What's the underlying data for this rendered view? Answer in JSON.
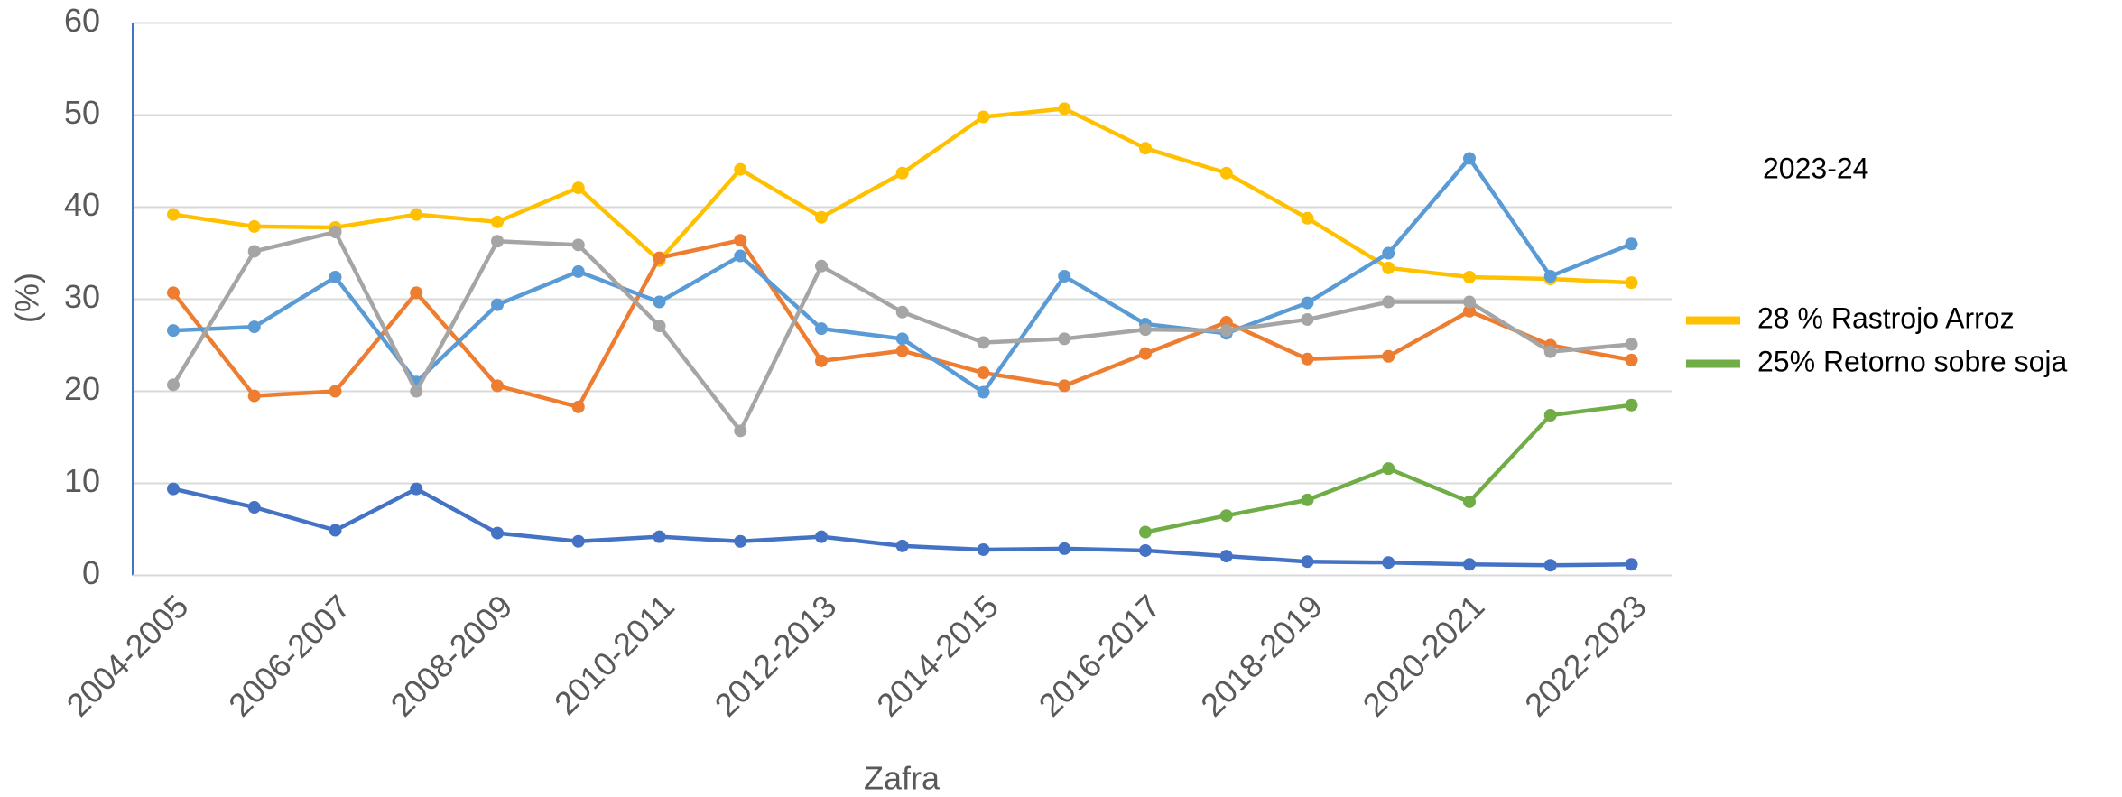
{
  "chart_data": {
    "type": "line",
    "x_label": "Zafra",
    "y_label": "(%)",
    "legend_title": "2023-24",
    "categories": [
      "2004-2005",
      null,
      "2006-2007",
      null,
      "2008-2009",
      null,
      "2010-2011",
      null,
      "2012-2013",
      null,
      "2014-2015",
      null,
      "2016-2017",
      null,
      "2018-2019",
      null,
      "2020-2021",
      null,
      "2022-2023"
    ],
    "series": [
      {
        "name": "28 % Rastrojo Arroz",
        "color": "#ffc000",
        "values": [
          39.2,
          37.9,
          37.8,
          39.2,
          38.4,
          42.1,
          34.2,
          44.1,
          38.9,
          43.7,
          49.8,
          50.7,
          46.4,
          43.7,
          38.8,
          33.4,
          32.4,
          32.2,
          31.8
        ]
      },
      {
        "color": "#ed7d31",
        "values": [
          30.7,
          19.5,
          20.0,
          30.7,
          20.6,
          18.3,
          34.5,
          36.4,
          23.3,
          24.4,
          22.0,
          20.6,
          24.1,
          27.5,
          23.5,
          23.8,
          28.7,
          25.0,
          23.4
        ]
      },
      {
        "color": "#5b9bd5",
        "values": [
          26.6,
          27.0,
          32.4,
          21.0,
          29.4,
          33.0,
          29.7,
          34.7,
          26.8,
          25.7,
          19.9,
          32.5,
          27.3,
          26.3,
          29.6,
          35.0,
          45.3,
          32.5,
          36.0
        ]
      },
      {
        "color": "#a5a5a5",
        "values": [
          20.7,
          35.2,
          37.3,
          20.0,
          36.3,
          35.9,
          27.1,
          15.7,
          33.6,
          28.6,
          25.3,
          25.7,
          26.7,
          26.6,
          27.8,
          29.7,
          29.7,
          24.3,
          25.1
        ]
      },
      {
        "color": "#4472c4",
        "values": [
          9.4,
          7.4,
          4.9,
          9.4,
          4.6,
          3.7,
          4.2,
          3.7,
          4.2,
          3.2,
          2.8,
          2.9,
          2.7,
          2.1,
          1.5,
          1.4,
          1.2,
          1.1,
          1.2
        ]
      },
      {
        "name": "25% Retorno sobre soja",
        "color": "#70ad47",
        "values": [
          null,
          null,
          null,
          null,
          null,
          null,
          null,
          null,
          null,
          null,
          null,
          null,
          4.7,
          6.5,
          8.2,
          11.6,
          8.0,
          17.4,
          18.5
        ]
      }
    ],
    "ylim": [
      0,
      60
    ],
    "yticks": [
      0,
      10,
      20,
      30,
      40,
      50,
      60
    ],
    "grid": true
  }
}
